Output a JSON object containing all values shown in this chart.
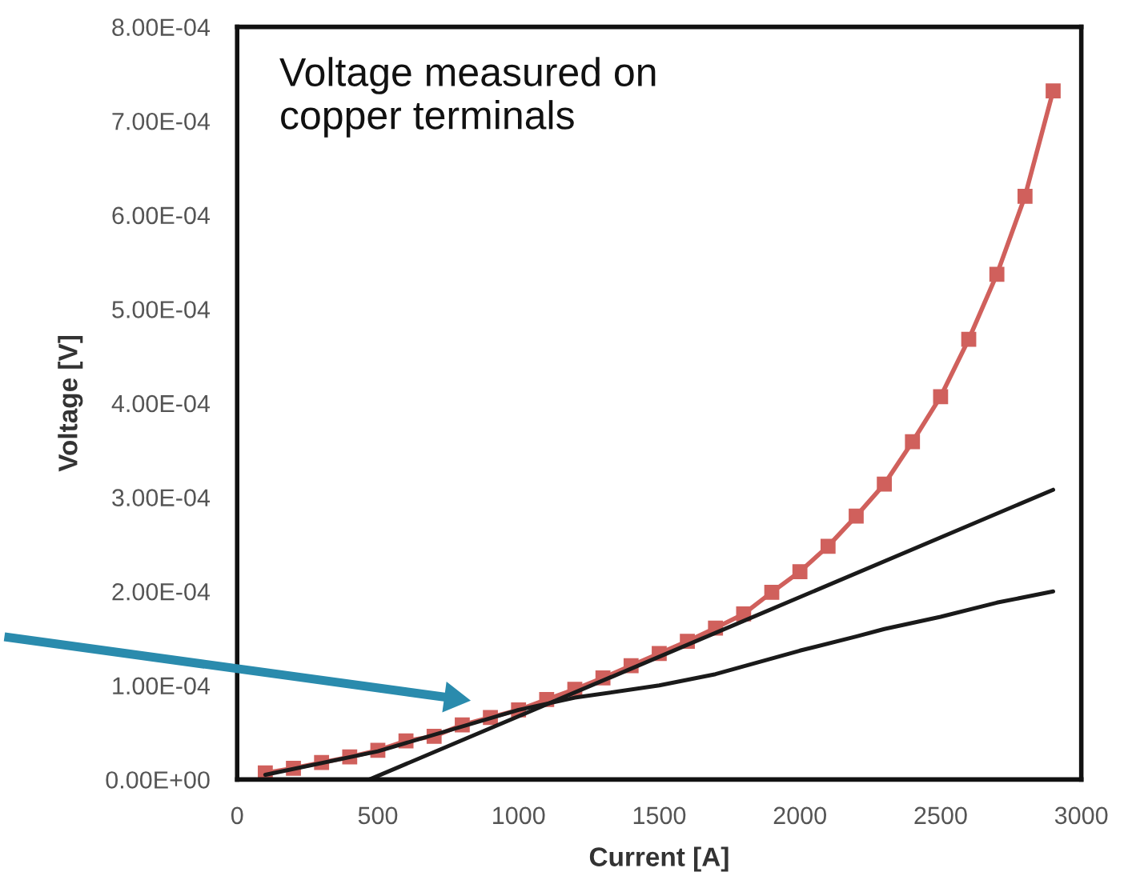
{
  "chart_data": {
    "type": "line",
    "xlabel": "Current [A]",
    "ylabel": "Voltage [V]",
    "annotations": [
      "Voltage measured on\ncopper terminals"
    ],
    "xlim": [
      0,
      3000
    ],
    "xticks": [
      0,
      500,
      1000,
      1500,
      2000,
      2500,
      3000
    ],
    "ylim": [
      0,
      0.0008
    ],
    "yticks": [
      {
        "value": 0,
        "label": "0.00E+00"
      },
      {
        "value": 0.0001,
        "label": "1.00E-04"
      },
      {
        "value": 0.0002,
        "label": "2.00E-04"
      },
      {
        "value": 0.0003,
        "label": "3.00E-04"
      },
      {
        "value": 0.0004,
        "label": "4.00E-04"
      },
      {
        "value": 0.0005,
        "label": "5.00E-04"
      },
      {
        "value": 0.0006,
        "label": "6.00E-04"
      },
      {
        "value": 0.0007,
        "label": "7.00E-04"
      },
      {
        "value": 0.0008,
        "label": "8.00E-04"
      }
    ],
    "grid": false,
    "legend": false,
    "series": [
      {
        "color": "#d0605c",
        "marker": "square",
        "line_style": "solid",
        "x": [
          100,
          200,
          300,
          400,
          500,
          600,
          700,
          800,
          900,
          1000,
          1100,
          1200,
          1300,
          1400,
          1500,
          1600,
          1700,
          1800,
          1900,
          2000,
          2100,
          2200,
          2300,
          2400,
          2500,
          2600,
          2700,
          2800,
          2900
        ],
        "values": [
          7e-06,
          1.2e-05,
          1.8e-05,
          2.4e-05,
          3.1e-05,
          4.1e-05,
          4.6e-05,
          5.8e-05,
          6.6e-05,
          7.4e-05,
          8.5e-05,
          9.6e-05,
          0.000108,
          0.000121,
          0.000134,
          0.000147,
          0.000161,
          0.000176,
          0.000199,
          0.000221,
          0.000248,
          0.00028,
          0.000314,
          0.000359,
          0.000407,
          0.000468,
          0.000537,
          0.00062,
          0.000732
        ]
      },
      {
        "color": "#1a1a1a",
        "marker": "none",
        "line_style": "solid",
        "x": [
          470,
          2900
        ],
        "values": [
          0,
          0.000308
        ]
      },
      {
        "color": "#1a1a1a",
        "marker": "none",
        "line_style": "solid",
        "x": [
          100,
          500,
          1000,
          1200,
          1500,
          1700,
          2000,
          2200,
          2300,
          2500,
          2700,
          2900
        ],
        "values": [
          5e-06,
          3e-05,
          7.4e-05,
          8.7e-05,
          0.0001,
          0.000112,
          0.000137,
          0.000152,
          0.00016,
          0.000173,
          0.000188,
          0.0002
        ]
      }
    ]
  }
}
